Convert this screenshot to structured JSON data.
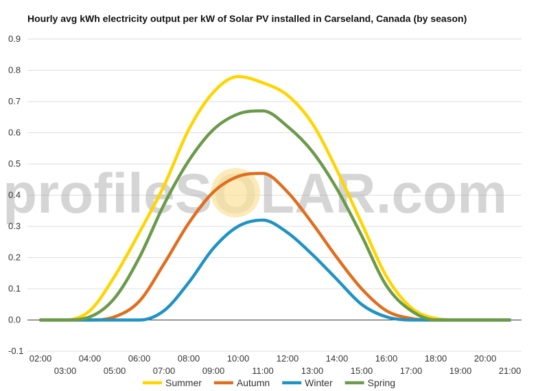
{
  "chart_data": {
    "type": "line",
    "title": "Hourly avg kWh electricity output per kW of Solar PV installed in Carseland, Canada (by season)",
    "xlabel": "",
    "ylabel": "",
    "x_tick_labels": [
      "02:00",
      "03:00",
      "04:00",
      "05:00",
      "06:00",
      "07:00",
      "08:00",
      "09:00",
      "10:00",
      "11:00",
      "12:00",
      "13:00",
      "14:00",
      "15:00",
      "16:00",
      "17:00",
      "18:00",
      "19:00",
      "20:00",
      "21:00"
    ],
    "y_ticks": [
      "-0.1",
      "0.0",
      "0.1",
      "0.2",
      "0.3",
      "0.4",
      "0.5",
      "0.6",
      "0.7",
      "0.8",
      "0.9"
    ],
    "ylim": [
      -0.1,
      0.9
    ],
    "grid": true,
    "legend_position": "bottom",
    "series": [
      {
        "name": "Summer",
        "color": "#FFD500",
        "values": [
          0.0,
          0.0,
          0.03,
          0.14,
          0.28,
          0.43,
          0.61,
          0.73,
          0.78,
          0.76,
          0.72,
          0.63,
          0.48,
          0.31,
          0.14,
          0.04,
          0.005,
          0.0,
          0.0,
          0.0
        ]
      },
      {
        "name": "Autumn",
        "color": "#E06E1F",
        "values": [
          0.0,
          0.0,
          0.0,
          0.01,
          0.06,
          0.18,
          0.31,
          0.41,
          0.46,
          0.47,
          0.41,
          0.31,
          0.2,
          0.1,
          0.03,
          0.005,
          0.0,
          0.0,
          0.0,
          0.0
        ]
      },
      {
        "name": "Winter",
        "color": "#1F93C4",
        "values": [
          0.0,
          0.0,
          0.0,
          0.0,
          0.0,
          0.03,
          0.12,
          0.23,
          0.3,
          0.32,
          0.28,
          0.21,
          0.13,
          0.05,
          0.01,
          0.0,
          0.0,
          0.0,
          0.0,
          0.0
        ]
      },
      {
        "name": "Spring",
        "color": "#6B9A4B",
        "values": [
          0.0,
          0.0,
          0.01,
          0.07,
          0.2,
          0.37,
          0.51,
          0.61,
          0.66,
          0.67,
          0.62,
          0.54,
          0.42,
          0.27,
          0.11,
          0.03,
          0.0,
          0.0,
          0.0,
          0.0
        ]
      }
    ]
  },
  "watermark": {
    "text_left": "profile",
    "text_s": "S",
    "text_sun": "O",
    "text_right": "LAR.com",
    "sun_color": "#FBE39A"
  }
}
